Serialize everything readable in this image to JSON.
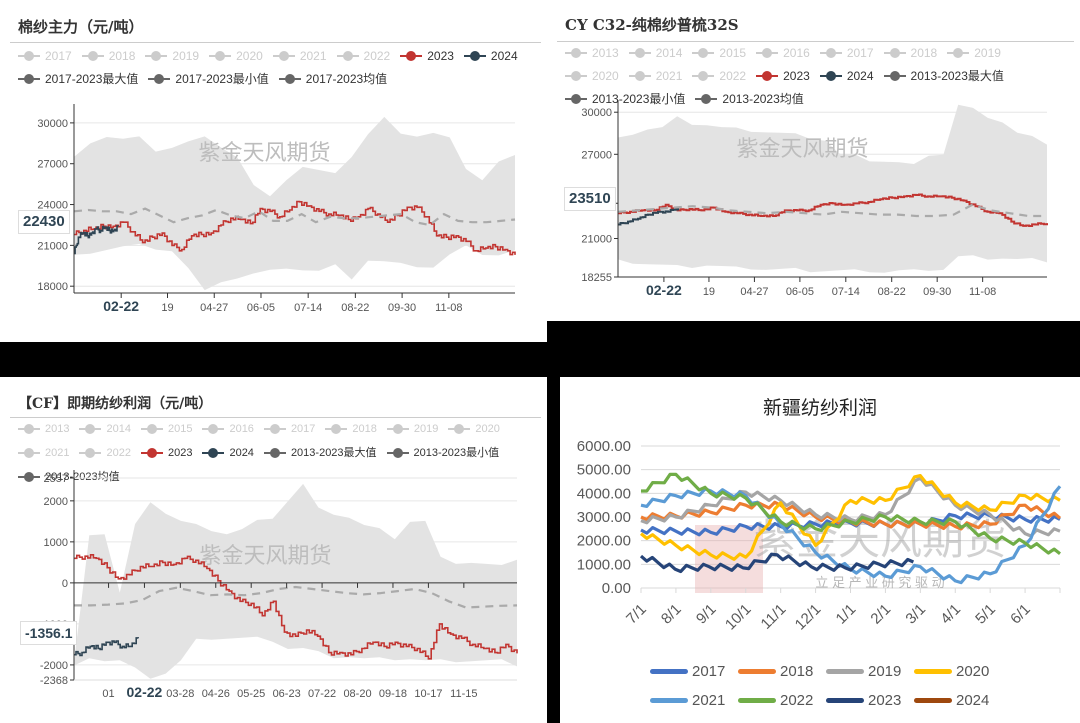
{
  "panels": {
    "p1": {
      "title": "棉纱主力（元/吨）",
      "legend": [
        {
          "label": "2017",
          "color": "#cccccc",
          "active": false
        },
        {
          "label": "2018",
          "color": "#cccccc",
          "active": false
        },
        {
          "label": "2019",
          "color": "#cccccc",
          "active": false
        },
        {
          "label": "2020",
          "color": "#cccccc",
          "active": false
        },
        {
          "label": "2021",
          "color": "#cccccc",
          "active": false
        },
        {
          "label": "2022",
          "color": "#cccccc",
          "active": false
        },
        {
          "label": "2023",
          "color": "#c23531",
          "active": true
        },
        {
          "label": "2024",
          "color": "#2f4554",
          "active": true
        },
        {
          "label": "2017-2023最大值",
          "color": "#666666",
          "active": true
        },
        {
          "label": "2017-2023最小值",
          "color": "#666666",
          "active": true
        },
        {
          "label": "2017-2023均值",
          "color": "#666666",
          "active": true
        }
      ],
      "pointer_value": "22430",
      "watermark": "紫金天风期货"
    },
    "p2": {
      "title": "CY C32-纯棉纱普梳32S",
      "legend": [
        {
          "label": "2013",
          "color": "#cccccc",
          "active": false
        },
        {
          "label": "2014",
          "color": "#cccccc",
          "active": false
        },
        {
          "label": "2015",
          "color": "#cccccc",
          "active": false
        },
        {
          "label": "2016",
          "color": "#cccccc",
          "active": false
        },
        {
          "label": "2017",
          "color": "#cccccc",
          "active": false
        },
        {
          "label": "2018",
          "color": "#cccccc",
          "active": false
        },
        {
          "label": "2019",
          "color": "#cccccc",
          "active": false
        },
        {
          "label": "2020",
          "color": "#cccccc",
          "active": false
        },
        {
          "label": "2021",
          "color": "#cccccc",
          "active": false
        },
        {
          "label": "2022",
          "color": "#cccccc",
          "active": false
        },
        {
          "label": "2023",
          "color": "#c23531",
          "active": true
        },
        {
          "label": "2024",
          "color": "#2f4554",
          "active": true
        },
        {
          "label": "2013-2023最大值",
          "color": "#666666",
          "active": true
        },
        {
          "label": "2013-2023最小值",
          "color": "#666666",
          "active": true
        },
        {
          "label": "2013-2023均值",
          "color": "#666666",
          "active": true
        }
      ],
      "pointer_value": "23510",
      "watermark": "紫金天风期货"
    },
    "p3": {
      "title": "【CF】即期纺纱利润（元/吨）",
      "legend": [
        {
          "label": "2013",
          "color": "#cccccc",
          "active": false
        },
        {
          "label": "2014",
          "color": "#cccccc",
          "active": false
        },
        {
          "label": "2015",
          "color": "#cccccc",
          "active": false
        },
        {
          "label": "2016",
          "color": "#cccccc",
          "active": false
        },
        {
          "label": "2017",
          "color": "#cccccc",
          "active": false
        },
        {
          "label": "2018",
          "color": "#cccccc",
          "active": false
        },
        {
          "label": "2019",
          "color": "#cccccc",
          "active": false
        },
        {
          "label": "2020",
          "color": "#cccccc",
          "active": false
        },
        {
          "label": "2021",
          "color": "#cccccc",
          "active": false
        },
        {
          "label": "2022",
          "color": "#cccccc",
          "active": false
        },
        {
          "label": "2023",
          "color": "#c23531",
          "active": true
        },
        {
          "label": "2024",
          "color": "#2f4554",
          "active": true
        },
        {
          "label": "2013-2023最大值",
          "color": "#666666",
          "active": true
        },
        {
          "label": "2013-2023最小值",
          "color": "#666666",
          "active": true
        },
        {
          "label": "2013-2023均值",
          "color": "#666666",
          "active": true
        }
      ],
      "pointer_value": "-1356.1",
      "watermark": "紫金天风期货"
    },
    "p4": {
      "title": "新疆纺纱利润",
      "watermark": "紫金天风期货",
      "watermark_sub": "立 足 产 业   研 究 驱 动"
    }
  },
  "chart_data": [
    {
      "type": "area",
      "title": "棉纱主力（元/吨）",
      "yticks": [
        18000,
        21000,
        24000,
        27000,
        30000
      ],
      "ylim": [
        17500,
        30800
      ],
      "xticks": [
        "02-22",
        "19",
        "04-27",
        "06-05",
        "07-14",
        "08-22",
        "09-30",
        "11-08"
      ],
      "xtick_pos": [
        0.107,
        0.212,
        0.318,
        0.424,
        0.531,
        0.638,
        0.744,
        0.85
      ],
      "highlight_x": "02-22",
      "pointer": 22430,
      "band_max": [
        27500,
        28600,
        29000,
        28800,
        28900,
        28000,
        28200,
        28600,
        28900,
        28300,
        27500,
        25400,
        24500,
        25900,
        26800,
        26500,
        26200,
        27600,
        29200,
        30400,
        29100,
        29100,
        29300,
        28900,
        26500,
        25900,
        27200,
        27600
      ],
      "band_min": [
        20200,
        20500,
        20700,
        20900,
        21000,
        20800,
        20600,
        19300,
        17600,
        18400,
        18600,
        18900,
        19100,
        19400,
        19200,
        19100,
        19500,
        18600,
        19900,
        19800,
        19600,
        19500,
        19400,
        20300,
        20900,
        20400,
        20300,
        20600
      ],
      "series": [
        {
          "name": "2023",
          "color": "#c23531",
          "values": [
            21800,
            22100,
            22200,
            22400,
            22400,
            22700,
            22000,
            21200,
            21600,
            21900,
            21000,
            20700,
            21700,
            21800,
            21900,
            22500,
            23000,
            22900,
            22600,
            23700,
            23500,
            23100,
            23600,
            24200,
            23900,
            23500,
            23300,
            23200,
            22900,
            23100,
            23700,
            23300,
            22700,
            23200,
            23800,
            23800,
            23100,
            21700,
            21600,
            21700,
            21300,
            20600,
            20800,
            20900,
            20700,
            20300
          ]
        },
        {
          "name": "2024",
          "color": "#2f4554",
          "values": [
            20400,
            21600,
            21900,
            21700,
            21900,
            22200,
            22100,
            22300,
            22100,
            22100,
            22400
          ]
        },
        {
          "name": "2017-2023均值",
          "color": "#aaaaaa",
          "dashed": true,
          "values": [
            23500,
            23600,
            23500,
            23500,
            23300,
            23700,
            23200,
            22700,
            23000,
            23200,
            23600,
            23200,
            23000,
            23500,
            22800,
            22800,
            23300,
            22700,
            23100,
            23000,
            23000,
            23100,
            23200,
            23300,
            22700,
            22500,
            23300,
            22800,
            22700,
            22700,
            22800,
            22900
          ]
        }
      ]
    },
    {
      "type": "area",
      "title": "CY C32-纯棉纱普梳32S",
      "yticks": [
        18255,
        21000,
        23510,
        27000,
        30000
      ],
      "ylim": [
        18255,
        30300
      ],
      "xticks": [
        "02-22",
        "19",
        "04-27",
        "06-05",
        "07-14",
        "08-22",
        "09-30",
        "11-08"
      ],
      "xtick_pos": [
        0.107,
        0.212,
        0.318,
        0.424,
        0.531,
        0.638,
        0.744,
        0.85
      ],
      "highlight_x": "02-22",
      "pointer": 23510,
      "band_max": [
        28200,
        28500,
        28800,
        28900,
        29600,
        29200,
        29100,
        28900,
        28800,
        28700,
        28600,
        28500,
        28400,
        28200,
        28000,
        27000,
        26900,
        26600,
        26500,
        26400,
        26200,
        27000,
        27000,
        30500,
        30200,
        29700,
        29300,
        28500,
        28200,
        27800
      ],
      "band_min": [
        19400,
        19300,
        19200,
        19100,
        19000,
        19000,
        19100,
        19000,
        18900,
        18900,
        18800,
        18800,
        18800,
        18700,
        18700,
        18700,
        18700,
        18700,
        18600,
        18700,
        18700,
        18800,
        18800,
        19700,
        19700,
        19600,
        19600,
        19500,
        19500,
        19400
      ],
      "series": [
        {
          "name": "2023",
          "color": "#c23531",
          "values": [
            22800,
            22900,
            23000,
            23000,
            23400,
            23000,
            23100,
            23000,
            23200,
            22900,
            22800,
            22700,
            22600,
            22600,
            23000,
            23000,
            23000,
            23400,
            23500,
            23400,
            23500,
            23600,
            23800,
            23900,
            24000,
            24100,
            24000,
            24000,
            23900,
            23700,
            23300,
            22900,
            22800,
            22200,
            21900,
            22000,
            22100
          ]
        },
        {
          "name": "2024",
          "color": "#2f4554",
          "values": [
            22000,
            22200,
            22400,
            22700,
            22900,
            22900,
            23200
          ]
        },
        {
          "name": "2013-2023均值",
          "color": "#aaaaaa",
          "dashed": true,
          "values": [
            22900,
            23000,
            23100,
            23200,
            23300,
            23200,
            23000,
            22900,
            22800,
            22900,
            22800,
            22700,
            22900,
            22800,
            22700,
            22700,
            22600,
            22600,
            22700,
            23400,
            23000,
            22800,
            22600,
            22600
          ]
        }
      ]
    },
    {
      "type": "area",
      "title": "【CF】即期纺纱利润（元/吨）",
      "yticks": [
        -2368,
        -2000,
        -1000,
        0,
        1000,
        2000,
        2557
      ],
      "ylim": [
        -2368,
        2557
      ],
      "xticks": [
        "01",
        "02-22",
        "03-28",
        "04-26",
        "05-25",
        "06-23",
        "07-22",
        "08-20",
        "09-18",
        "10-17",
        "11-15"
      ],
      "xtick_pos": [
        0.078,
        0.159,
        0.24,
        0.32,
        0.4,
        0.48,
        0.56,
        0.64,
        0.72,
        0.8,
        0.88
      ],
      "highlight_x": "02-22",
      "pointer": -1356.1,
      "band_max": [
        -1950,
        1200,
        1200,
        -250,
        1400,
        2000,
        1700,
        1500,
        1400,
        1300,
        1200,
        1300,
        1500,
        1600,
        2000,
        2400,
        1800,
        1700,
        1600,
        1400,
        1300,
        1100,
        1500,
        1500,
        600,
        500,
        500,
        450,
        400,
        600
      ],
      "band_min": [
        -2050,
        -1800,
        -1900,
        -1900,
        -2100,
        -2300,
        -2200,
        -1900,
        -1400,
        -1350,
        -1350,
        -1350,
        -1350,
        -1400,
        -1600,
        -1600,
        -1700,
        -1800,
        -1800,
        -1850,
        -1850,
        -1850,
        -1850,
        -1900,
        -1900,
        -1900,
        -1900,
        -1900,
        -1900,
        -2000
      ],
      "series": [
        {
          "name": "2023",
          "color": "#c23531",
          "values": [
            600,
            650,
            600,
            370,
            100,
            200,
            400,
            400,
            500,
            450,
            600,
            550,
            350,
            50,
            -200,
            -450,
            -500,
            -800,
            -450,
            -1200,
            -1300,
            -1150,
            -1300,
            -1700,
            -1700,
            -1750,
            -1600,
            -1450,
            -1550,
            -1450,
            -1550,
            -1600,
            -1850,
            -1000,
            -1250,
            -1350,
            -1500,
            -1600,
            -1700,
            -1500,
            -1720
          ]
        },
        {
          "name": "2024",
          "color": "#2f4554",
          "values": [
            -1750,
            -1700,
            -1550,
            -1600,
            -1450,
            -1450,
            -1550,
            -1550,
            -1350
          ]
        },
        {
          "name": "2013-2023均值",
          "color": "#aaaaaa",
          "dashed": true,
          "values": [
            -550,
            -550,
            -530,
            -500,
            -420,
            -200,
            -120,
            -200,
            -300,
            -280,
            -300,
            -250,
            -150,
            -100,
            -150,
            -200,
            -250,
            -280,
            -250,
            -200,
            -150,
            -250,
            -450,
            -600,
            -580,
            -560,
            -550
          ]
        }
      ]
    },
    {
      "type": "line",
      "title": "新疆纺纱利润",
      "yticks": [
        "0.00",
        "1000.00",
        "2000.00",
        "3000.00",
        "4000.00",
        "5000.00",
        "6000.00"
      ],
      "ylim": [
        0,
        6000
      ],
      "categories": [
        "7/1",
        "8/1",
        "9/1",
        "10/1",
        "11/1",
        "12/1",
        "1/1",
        "2/1",
        "3/1",
        "4/1",
        "5/1",
        "6/1"
      ],
      "legend_position": "bottom",
      "series": [
        {
          "name": "2017",
          "color": "#4472c4",
          "values": [
            2450,
            2400,
            2350,
            2600,
            2600,
            2700,
            2750,
            2700,
            2700,
            3050,
            3050,
            2900,
            2900
          ]
        },
        {
          "name": "2018",
          "color": "#ed7d31",
          "values": [
            3000,
            3050,
            3200,
            3500,
            3500,
            3000,
            2800,
            2700,
            2700,
            2600,
            2700,
            3500,
            2950
          ]
        },
        {
          "name": "2019",
          "color": "#a5a5a5",
          "values": [
            2850,
            3000,
            3500,
            4050,
            3700,
            3100,
            2900,
            3100,
            4650,
            3500,
            3100,
            2300,
            2400
          ]
        },
        {
          "name": "2020",
          "color": "#ffc000",
          "values": [
            2300,
            1800,
            1400,
            1300,
            3600,
            1800,
            3700,
            3700,
            4750,
            3600,
            3300,
            3900,
            3700
          ]
        },
        {
          "name": "2021",
          "color": "#5b9bd5",
          "values": [
            3500,
            3900,
            4100,
            3900,
            2700,
            1500,
            800,
            500,
            900,
            300,
            600,
            1800,
            4300
          ]
        },
        {
          "name": "2022",
          "color": "#70ad47",
          "values": [
            4100,
            4800,
            4000,
            3800,
            2800,
            2500,
            2800,
            3000,
            2800,
            2800,
            2100,
            1900,
            1450
          ]
        },
        {
          "name": "2023",
          "color": "#264478",
          "values": [
            1350,
            800,
            900,
            850,
            1400,
            900,
            850,
            1000,
            1100
          ]
        },
        {
          "name": "2024",
          "color": "#9e480e",
          "values": []
        }
      ]
    }
  ]
}
